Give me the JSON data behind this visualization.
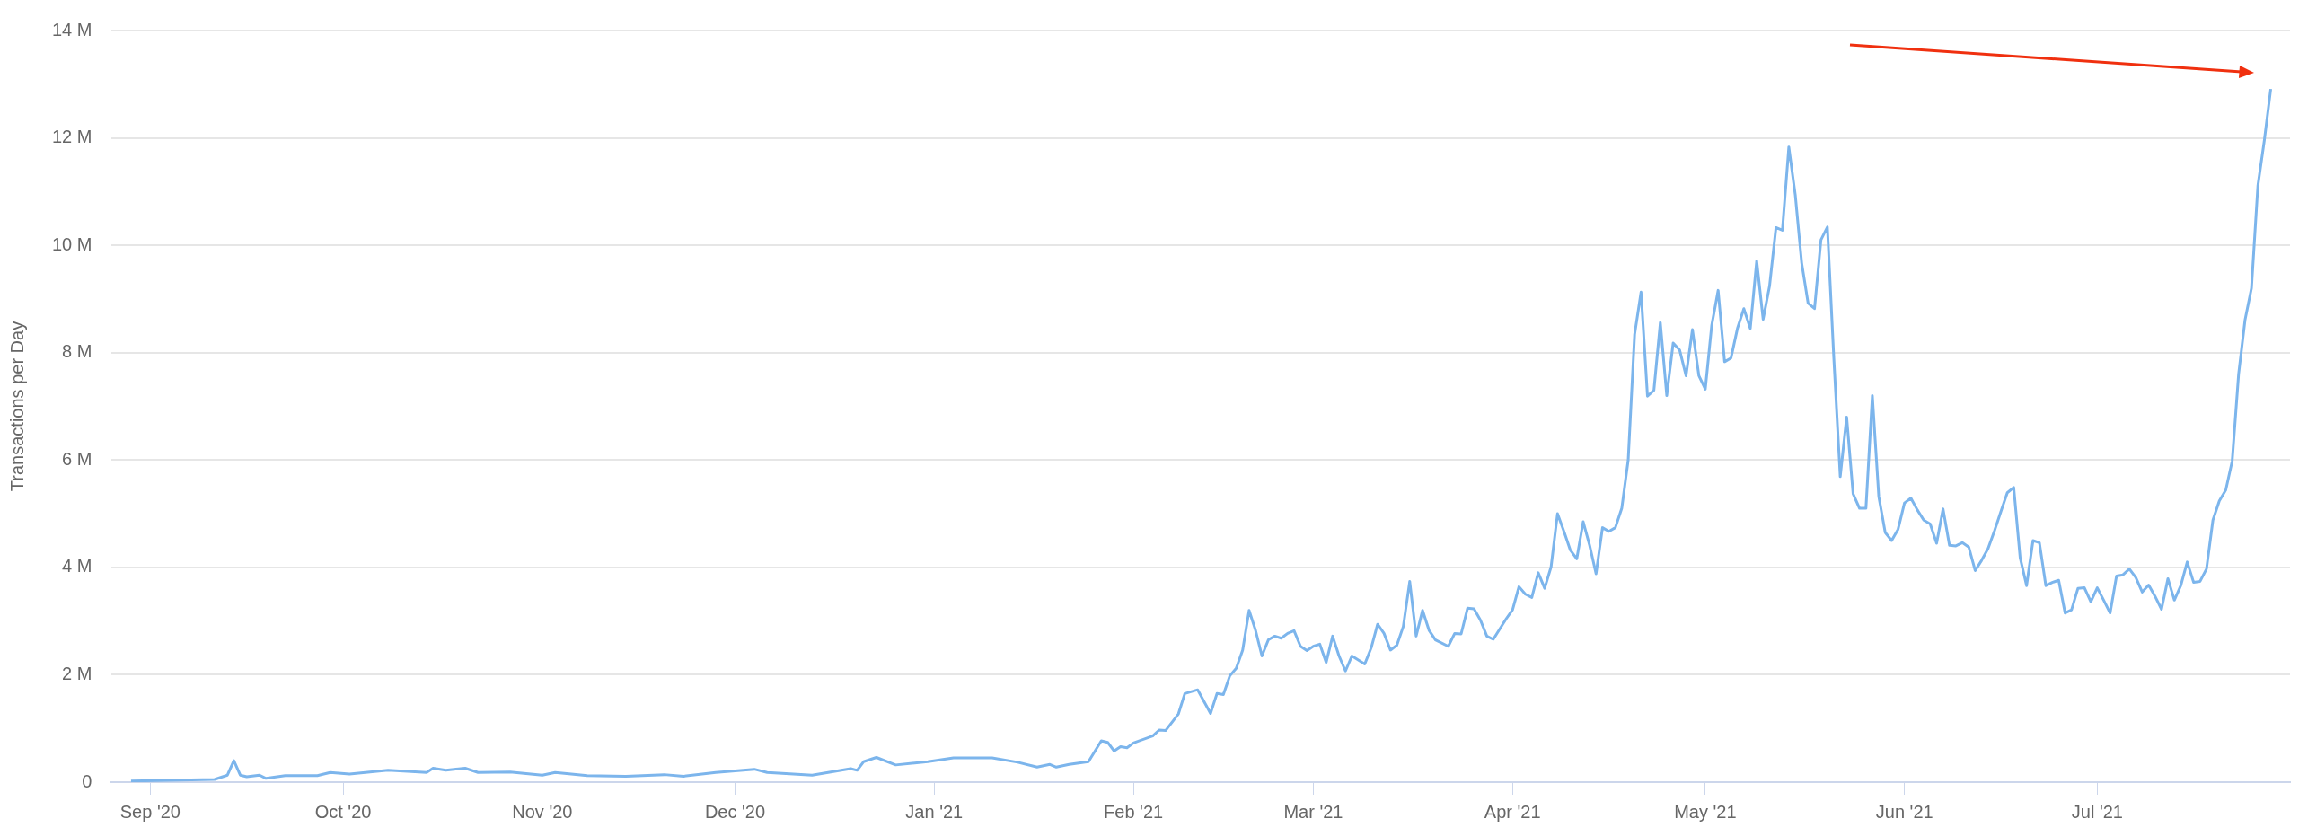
{
  "chart_data": {
    "type": "line",
    "ylabel": "Transactions per Day",
    "grid": "y",
    "legend": false,
    "marker": "none",
    "line_style": "solid",
    "xlim": [
      "2020-08-26",
      "2021-07-31"
    ],
    "xticks": [
      {
        "value": "2020-09-01",
        "label": "Sep '20"
      },
      {
        "value": "2020-10-01",
        "label": "Oct '20"
      },
      {
        "value": "2020-11-01",
        "label": "Nov '20"
      },
      {
        "value": "2020-12-01",
        "label": "Dec '20"
      },
      {
        "value": "2021-01-01",
        "label": "Jan '21"
      },
      {
        "value": "2021-02-01",
        "label": "Feb '21"
      },
      {
        "value": "2021-03-01",
        "label": "Mar '21"
      },
      {
        "value": "2021-04-01",
        "label": "Apr '21"
      },
      {
        "value": "2021-05-01",
        "label": "May '21"
      },
      {
        "value": "2021-06-01",
        "label": "Jun '21"
      },
      {
        "value": "2021-07-01",
        "label": "Jul '21"
      }
    ],
    "ylim": [
      0,
      14
    ],
    "yticks": [
      0,
      {
        "value": 2,
        "label": "2 M"
      },
      {
        "value": 4,
        "label": "4 M"
      },
      {
        "value": 6,
        "label": "6 M"
      },
      {
        "value": 8,
        "label": "8 M"
      },
      {
        "value": 10,
        "label": "10 M"
      },
      {
        "value": 12,
        "label": "12 M"
      },
      {
        "value": 14,
        "label": "14 M"
      }
    ],
    "series": [
      {
        "color": "#7cb5ec",
        "x": [
          "2020-08-29",
          "2020-09-11",
          "2020-09-13",
          "2020-09-14",
          "2020-09-15",
          "2020-09-16",
          "2020-09-18",
          "2020-09-19",
          "2020-09-22",
          "2020-09-24",
          "2020-09-27",
          "2020-09-29",
          "2020-10-02",
          "2020-10-08",
          "2020-10-14",
          "2020-10-15",
          "2020-10-17",
          "2020-10-20",
          "2020-10-22",
          "2020-10-27",
          "2020-11-01",
          "2020-11-03",
          "2020-11-08",
          "2020-11-14",
          "2020-11-20",
          "2020-11-23",
          "2020-11-28",
          "2020-12-04",
          "2020-12-06",
          "2020-12-13",
          "2020-12-19",
          "2020-12-20",
          "2020-12-21",
          "2020-12-23",
          "2020-12-26",
          "2020-12-31",
          "2021-01-04",
          "2021-01-10",
          "2021-01-14",
          "2021-01-17",
          "2021-01-19",
          "2021-01-20",
          "2021-01-22",
          "2021-01-25",
          "2021-01-27",
          "2021-01-28",
          "2021-01-29",
          "2021-01-30",
          "2021-01-31",
          "2021-02-01",
          "2021-02-04",
          "2021-02-05",
          "2021-02-06",
          "2021-02-08",
          "2021-02-09",
          "2021-02-11",
          "2021-02-13",
          "2021-02-14",
          "2021-02-15",
          "2021-02-16",
          "2021-02-17",
          "2021-02-18",
          "2021-02-19",
          "2021-02-20",
          "2021-02-21",
          "2021-02-22",
          "2021-02-23",
          "2021-02-24",
          "2021-02-25",
          "2021-02-26",
          "2021-02-27",
          "2021-02-28",
          "2021-03-01",
          "2021-03-02",
          "2021-03-03",
          "2021-03-04",
          "2021-03-05",
          "2021-03-06",
          "2021-03-07",
          "2021-03-09",
          "2021-03-10",
          "2021-03-11",
          "2021-03-12",
          "2021-03-13",
          "2021-03-14",
          "2021-03-15",
          "2021-03-16",
          "2021-03-17",
          "2021-03-18",
          "2021-03-19",
          "2021-03-20",
          "2021-03-22",
          "2021-03-23",
          "2021-03-24",
          "2021-03-25",
          "2021-03-26",
          "2021-03-27",
          "2021-03-28",
          "2021-03-29",
          "2021-03-31",
          "2021-04-01",
          "2021-04-02",
          "2021-04-03",
          "2021-04-04",
          "2021-04-05",
          "2021-04-06",
          "2021-04-07",
          "2021-04-08",
          "2021-04-09",
          "2021-04-10",
          "2021-04-11",
          "2021-04-12",
          "2021-04-13",
          "2021-04-14",
          "2021-04-15",
          "2021-04-16",
          "2021-04-17",
          "2021-04-18",
          "2021-04-19",
          "2021-04-20",
          "2021-04-21",
          "2021-04-22",
          "2021-04-23",
          "2021-04-24",
          "2021-04-25",
          "2021-04-26",
          "2021-04-27",
          "2021-04-28",
          "2021-04-29",
          "2021-04-30",
          "2021-05-01",
          "2021-05-02",
          "2021-05-03",
          "2021-05-04",
          "2021-05-05",
          "2021-05-06",
          "2021-05-07",
          "2021-05-08",
          "2021-05-09",
          "2021-05-10",
          "2021-05-11",
          "2021-05-12",
          "2021-05-13",
          "2021-05-14",
          "2021-05-15",
          "2021-05-16",
          "2021-05-17",
          "2021-05-18",
          "2021-05-19",
          "2021-05-20",
          "2021-05-21",
          "2021-05-22",
          "2021-05-23",
          "2021-05-24",
          "2021-05-25",
          "2021-05-26",
          "2021-05-27",
          "2021-05-28",
          "2021-05-29",
          "2021-05-30",
          "2021-05-31",
          "2021-06-01",
          "2021-06-02",
          "2021-06-03",
          "2021-06-04",
          "2021-06-05",
          "2021-06-06",
          "2021-06-07",
          "2021-06-08",
          "2021-06-09",
          "2021-06-10",
          "2021-06-11",
          "2021-06-12",
          "2021-06-13",
          "2021-06-14",
          "2021-06-15",
          "2021-06-16",
          "2021-06-17",
          "2021-06-18",
          "2021-06-19",
          "2021-06-20",
          "2021-06-21",
          "2021-06-22",
          "2021-06-23",
          "2021-06-24",
          "2021-06-25",
          "2021-06-26",
          "2021-06-27",
          "2021-06-28",
          "2021-06-29",
          "2021-06-30",
          "2021-07-01",
          "2021-07-02",
          "2021-07-03",
          "2021-07-04",
          "2021-07-05",
          "2021-07-06",
          "2021-07-07",
          "2021-07-08",
          "2021-07-09",
          "2021-07-10",
          "2021-07-11",
          "2021-07-12",
          "2021-07-13",
          "2021-07-14",
          "2021-07-15",
          "2021-07-16",
          "2021-07-17",
          "2021-07-18",
          "2021-07-19",
          "2021-07-20",
          "2021-07-21",
          "2021-07-22",
          "2021-07-23",
          "2021-07-24",
          "2021-07-25",
          "2021-07-26",
          "2021-07-27",
          "2021-07-28"
        ],
        "values": [
          0.02,
          0.05,
          0.13,
          0.4,
          0.13,
          0.1,
          0.13,
          0.07,
          0.12,
          0.12,
          0.12,
          0.18,
          0.15,
          0.22,
          0.18,
          0.26,
          0.22,
          0.26,
          0.18,
          0.19,
          0.13,
          0.18,
          0.12,
          0.11,
          0.14,
          0.11,
          0.18,
          0.24,
          0.18,
          0.13,
          0.25,
          0.22,
          0.38,
          0.46,
          0.32,
          0.38,
          0.45,
          0.45,
          0.37,
          0.28,
          0.33,
          0.28,
          0.33,
          0.38,
          0.77,
          0.74,
          0.58,
          0.66,
          0.64,
          0.73,
          0.86,
          0.97,
          0.96,
          1.27,
          1.65,
          1.72,
          1.28,
          1.65,
          1.63,
          1.98,
          2.12,
          2.46,
          3.2,
          2.83,
          2.35,
          2.65,
          2.72,
          2.68,
          2.77,
          2.82,
          2.53,
          2.45,
          2.53,
          2.57,
          2.23,
          2.72,
          2.35,
          2.07,
          2.35,
          2.2,
          2.5,
          2.94,
          2.77,
          2.46,
          2.55,
          2.9,
          3.74,
          2.72,
          3.2,
          2.83,
          2.65,
          2.53,
          2.77,
          2.76,
          3.24,
          3.23,
          3.02,
          2.72,
          2.66,
          3.04,
          3.21,
          3.64,
          3.5,
          3.44,
          3.9,
          3.61,
          4.01,
          5.0,
          4.67,
          4.32,
          4.16,
          4.85,
          4.41,
          3.88,
          4.74,
          4.67,
          4.74,
          5.1,
          6.0,
          8.34,
          9.13,
          7.19,
          7.3,
          8.56,
          7.2,
          8.18,
          8.05,
          7.57,
          8.43,
          7.57,
          7.32,
          8.51,
          9.16,
          7.83,
          7.9,
          8.45,
          8.82,
          8.45,
          9.71,
          8.62,
          9.24,
          10.33,
          10.28,
          11.83,
          10.94,
          9.67,
          8.92,
          8.82,
          10.1,
          10.34,
          7.9,
          5.69,
          6.8,
          5.37,
          5.1,
          5.1,
          7.2,
          5.32,
          4.65,
          4.5,
          4.71,
          5.2,
          5.29,
          5.07,
          4.88,
          4.81,
          4.45,
          5.09,
          4.41,
          4.4,
          4.46,
          4.38,
          3.94,
          4.13,
          4.35,
          4.68,
          5.04,
          5.39,
          5.49,
          4.18,
          3.66,
          4.5,
          4.46,
          3.66,
          3.72,
          3.76,
          3.15,
          3.21,
          3.61,
          3.62,
          3.36,
          3.62,
          3.39,
          3.15,
          3.84,
          3.86,
          3.97,
          3.81,
          3.54,
          3.67,
          3.46,
          3.22,
          3.79,
          3.39,
          3.66,
          4.1,
          3.72,
          3.74,
          3.97,
          4.88,
          5.24,
          5.44,
          5.98,
          7.6,
          8.61,
          9.2,
          11.11,
          11.95,
          12.91
        ]
      }
    ]
  }
}
